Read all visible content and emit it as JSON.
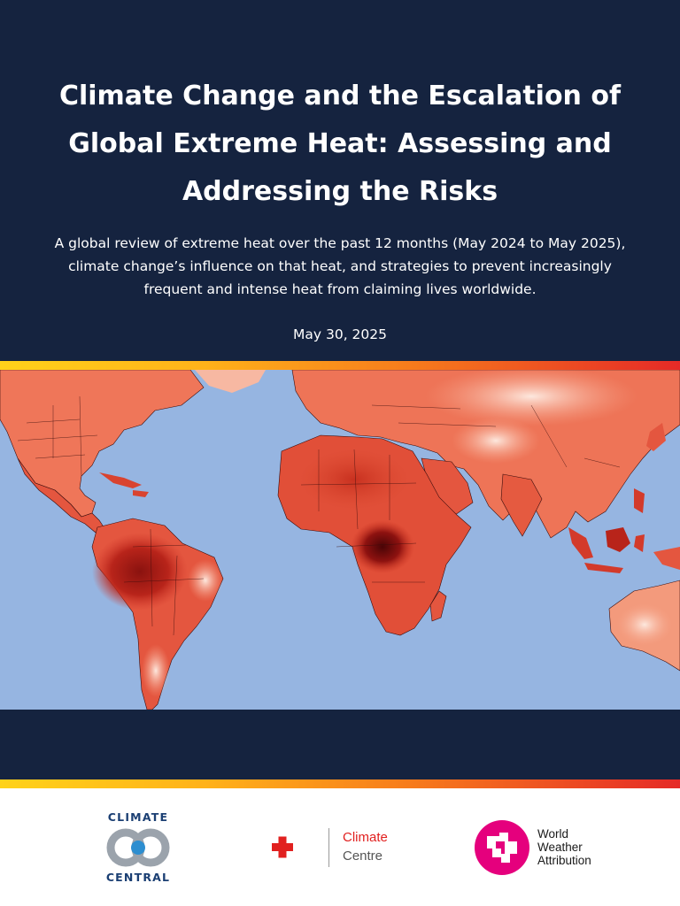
{
  "header": {
    "title": "Climate Change and the Escalation of Global Extreme Heat: Assessing and Addressing the Risks",
    "subtitle": "A global review of extreme heat over the past 12 months (May 2024 to May 2025), climate change’s influence on that heat, and strategies to prevent increasingly frequent and intense heat from claiming lives worldwide.",
    "date": "May 30, 2025",
    "background_color": "#15233f"
  },
  "map": {
    "ocean_color": "#96b5e1",
    "land_colors": [
      "#fde5da",
      "#f6a286",
      "#ec6a4e",
      "#d93a2e",
      "#9b1411",
      "#5a0608"
    ]
  },
  "logos": {
    "climate_central": {
      "line1": "CLIMATE",
      "line2": "CENTRAL",
      "color": "#1b3f73",
      "accent": "#2d8ed0"
    },
    "climate_centre": {
      "line1": "Climate",
      "line2": "Centre",
      "accent": "#e1201f"
    },
    "wwa": {
      "line1": "World",
      "line2": "Weather",
      "line3": "Attribution",
      "accent": "#e5007d"
    }
  }
}
